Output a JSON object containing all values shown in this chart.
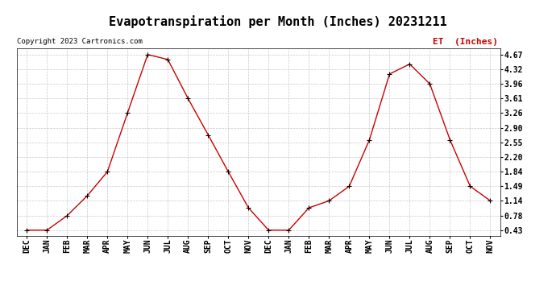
{
  "title": "Evapotranspiration per Month (Inches) 20231211",
  "legend_label": "ET  (Inches)",
  "copyright": "Copyright 2023 Cartronics.com",
  "months": [
    "DEC",
    "JAN",
    "FEB",
    "MAR",
    "APR",
    "MAY",
    "JUN",
    "JUL",
    "AUG",
    "SEP",
    "OCT",
    "NOV",
    "DEC",
    "JAN",
    "FEB",
    "MAR",
    "APR",
    "MAY",
    "JUN",
    "JUL",
    "AUG",
    "SEP",
    "OCT",
    "NOV"
  ],
  "values": [
    0.43,
    0.43,
    0.78,
    1.26,
    1.84,
    3.26,
    4.67,
    4.55,
    3.61,
    2.73,
    1.84,
    0.97,
    0.43,
    0.43,
    0.97,
    1.14,
    1.49,
    2.61,
    4.2,
    4.44,
    3.96,
    2.61,
    1.49,
    1.14
  ],
  "yticks": [
    0.43,
    0.78,
    1.14,
    1.49,
    1.84,
    2.2,
    2.55,
    2.9,
    3.26,
    3.61,
    3.96,
    4.32,
    4.67
  ],
  "ytick_labels": [
    "0.43",
    "0.78",
    "1.14",
    "1.49",
    "1.84",
    "2.20",
    "2.55",
    "2.90",
    "3.26",
    "3.61",
    "3.96",
    "4.32",
    "4.67"
  ],
  "line_color": "#cc0000",
  "marker": "+",
  "background_color": "#ffffff",
  "grid_color": "#bbbbbb",
  "title_fontsize": 11,
  "tick_fontsize": 7,
  "legend_color": "#cc0000",
  "copyright_color": "#000000",
  "copyright_fontsize": 6.5,
  "legend_fontsize": 8
}
